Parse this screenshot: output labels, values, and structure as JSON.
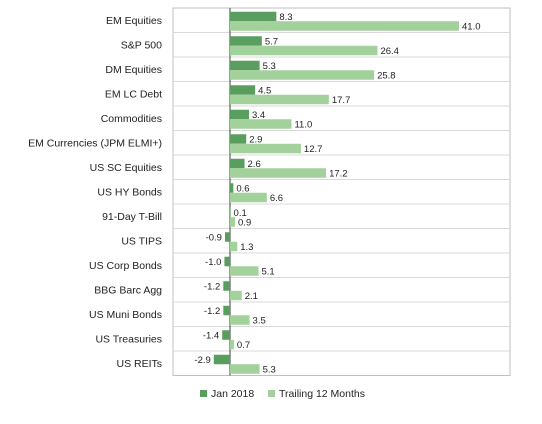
{
  "chart_data": {
    "type": "bar",
    "orientation": "horizontal",
    "categories": [
      "EM Equities",
      "S&P 500",
      "DM Equities",
      "EM LC Debt",
      "Commodities",
      "EM Currencies (JPM ELMI+)",
      "US SC Equities",
      "US HY Bonds",
      "91-Day T-Bill",
      "US TIPS",
      "US Corp Bonds",
      "BBG Barc Agg",
      "US Muni Bonds",
      "US Treasuries",
      "US REITs"
    ],
    "series": [
      {
        "name": "Jan 2018",
        "color": "#5a9e5f",
        "values": [
          8.3,
          5.7,
          5.3,
          4.5,
          3.4,
          2.9,
          2.6,
          0.6,
          0.1,
          -0.9,
          -1.0,
          -1.2,
          -1.2,
          -1.4,
          -2.9
        ]
      },
      {
        "name": "Trailing 12 Months",
        "color": "#a3d19c",
        "values": [
          41.0,
          26.4,
          25.8,
          17.7,
          11.0,
          12.7,
          17.2,
          6.6,
          0.9,
          1.3,
          5.1,
          2.1,
          3.5,
          0.7,
          5.3
        ]
      }
    ],
    "legend_position": "bottom",
    "grid": "horizontal separators"
  }
}
